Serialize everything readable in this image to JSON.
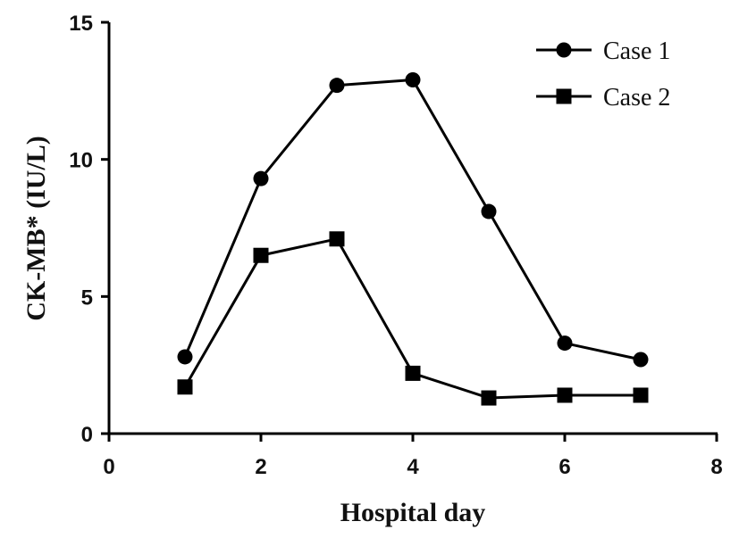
{
  "chart_data": {
    "type": "line",
    "xlabel": "Hospital day",
    "ylabel": "CK-MB* (IU/L)",
    "xlim": [
      0,
      8
    ],
    "ylim": [
      0,
      15
    ],
    "xticks": [
      "0",
      "2",
      "4",
      "6",
      "8"
    ],
    "yticks": [
      "0",
      "5",
      "10",
      "15"
    ],
    "grid": false,
    "legend_position": "top-right",
    "series": [
      {
        "name": "Case 1",
        "marker": "circle",
        "color": "#000000",
        "x": [
          1,
          2,
          3,
          4,
          5,
          6,
          7
        ],
        "y": [
          2.8,
          9.3,
          12.7,
          12.9,
          8.1,
          3.3,
          2.7
        ]
      },
      {
        "name": "Case 2",
        "marker": "square",
        "color": "#000000",
        "x": [
          1,
          2,
          3,
          4,
          5,
          6,
          7
        ],
        "y": [
          1.7,
          6.5,
          7.1,
          2.2,
          1.3,
          1.4,
          1.4
        ]
      }
    ]
  }
}
